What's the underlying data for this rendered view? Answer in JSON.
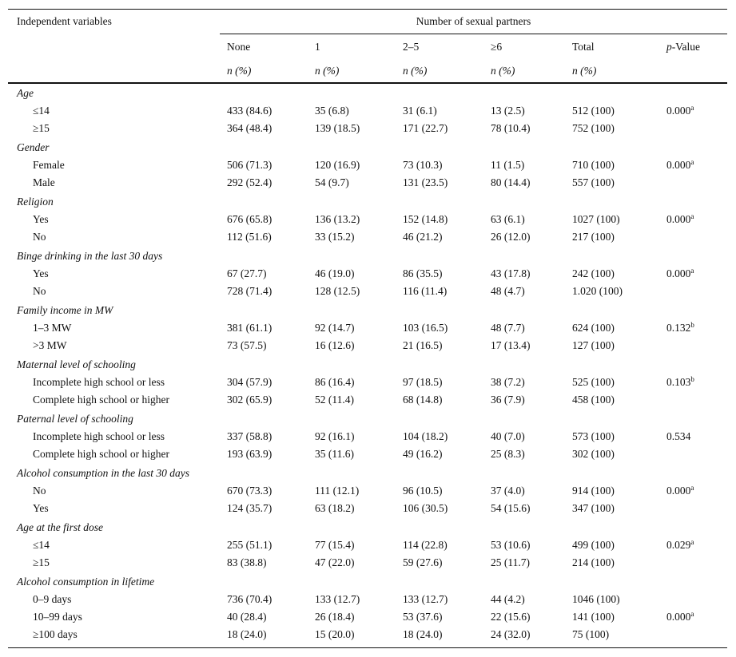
{
  "header": {
    "label_column": "Independent variables",
    "group": "Number of sexual partners",
    "columns": [
      "None",
      "1",
      "2–5",
      "≥6",
      "Total"
    ],
    "p_column": {
      "italic": "p",
      "rest": "-Value"
    },
    "units": [
      "n (%)",
      "n (%)",
      "n (%)",
      "n (%)",
      "n (%)"
    ]
  },
  "groups": [
    {
      "label": "Age",
      "rows": [
        {
          "label": "≤14",
          "cells": [
            "433 (84.6)",
            "35 (6.8)",
            "31 (6.1)",
            "13 (2.5)",
            "512 (100)"
          ],
          "p": "0.000",
          "note": "a"
        },
        {
          "label": "≥15",
          "cells": [
            "364 (48.4)",
            "139 (18.5)",
            "171 (22.7)",
            "78 (10.4)",
            "752 (100)"
          ]
        }
      ]
    },
    {
      "label": "Gender",
      "rows": [
        {
          "label": "Female",
          "cells": [
            "506 (71.3)",
            "120 (16.9)",
            "73 (10.3)",
            "11 (1.5)",
            "710 (100)"
          ],
          "p": "0.000",
          "note": "a"
        },
        {
          "label": "Male",
          "cells": [
            "292 (52.4)",
            "54 (9.7)",
            "131 (23.5)",
            "80 (14.4)",
            "557 (100)"
          ]
        }
      ]
    },
    {
      "label": "Religion",
      "rows": [
        {
          "label": "Yes",
          "cells": [
            "676 (65.8)",
            "136 (13.2)",
            "152 (14.8)",
            "63 (6.1)",
            "1027 (100)"
          ],
          "p": "0.000",
          "note": "a"
        },
        {
          "label": "No",
          "cells": [
            "112 (51.6)",
            "33 (15.2)",
            "46 (21.2)",
            "26 (12.0)",
            "217 (100)"
          ]
        }
      ]
    },
    {
      "label": "Binge drinking in the last 30 days",
      "rows": [
        {
          "label": "Yes",
          "cells": [
            "67 (27.7)",
            "46 (19.0)",
            "86 (35.5)",
            "43 (17.8)",
            "242 (100)"
          ],
          "p": "0.000",
          "note": "a"
        },
        {
          "label": "No",
          "cells": [
            "728 (71.4)",
            "128 (12.5)",
            "116 (11.4)",
            "48 (4.7)",
            "1.020 (100)"
          ]
        }
      ]
    },
    {
      "label": "Family income in MW",
      "rows": [
        {
          "label": "1–3 MW",
          "cells": [
            "381 (61.1)",
            "92 (14.7)",
            "103 (16.5)",
            "48 (7.7)",
            "624 (100)"
          ],
          "p": "0.132",
          "note": "b"
        },
        {
          "label": ">3 MW",
          "cells": [
            "73 (57.5)",
            "16 (12.6)",
            "21 (16.5)",
            "17 (13.4)",
            "127 (100)"
          ]
        }
      ]
    },
    {
      "label": "Maternal level of schooling",
      "rows": [
        {
          "label": "Incomplete high school or less",
          "cells": [
            "304 (57.9)",
            "86 (16.4)",
            "97 (18.5)",
            "38 (7.2)",
            "525 (100)"
          ],
          "p": "0.103",
          "note": "b"
        },
        {
          "label": "Complete high school or higher",
          "cells": [
            "302 (65.9)",
            "52 (11.4)",
            "68 (14.8)",
            "36 (7.9)",
            "458 (100)"
          ]
        }
      ]
    },
    {
      "label": "Paternal level of schooling",
      "rows": [
        {
          "label": "Incomplete high school or less",
          "cells": [
            "337 (58.8)",
            "92 (16.1)",
            "104 (18.2)",
            "40 (7.0)",
            "573 (100)"
          ],
          "p": "0.534"
        },
        {
          "label": "Complete high school or higher",
          "cells": [
            "193 (63.9)",
            "35 (11.6)",
            "49 (16.2)",
            "25 (8.3)",
            "302 (100)"
          ]
        }
      ]
    },
    {
      "label": "Alcohol consumption in the last 30 days",
      "rows": [
        {
          "label": "No",
          "cells": [
            "670 (73.3)",
            "111 (12.1)",
            "96 (10.5)",
            "37 (4.0)",
            "914 (100)"
          ],
          "p": "0.000",
          "note": "a"
        },
        {
          "label": "Yes",
          "cells": [
            "124 (35.7)",
            "63 (18.2)",
            "106 (30.5)",
            "54 (15.6)",
            "347 (100)"
          ]
        }
      ]
    },
    {
      "label": "Age at the first dose",
      "rows": [
        {
          "label": "≤14",
          "cells": [
            "255 (51.1)",
            "77 (15.4)",
            "114 (22.8)",
            "53 (10.6)",
            "499 (100)"
          ],
          "p": "0.029",
          "note": "a"
        },
        {
          "label": "≥15",
          "cells": [
            "83 (38.8)",
            "47 (22.0)",
            "59 (27.6)",
            "25 (11.7)",
            "214 (100)"
          ]
        }
      ]
    },
    {
      "label": "Alcohol consumption in lifetime",
      "rows": [
        {
          "label": "0–9 days",
          "cells": [
            "736 (70.4)",
            "133 (12.7)",
            "133 (12.7)",
            "44 (4.2)",
            "1046 (100)"
          ]
        },
        {
          "label": "10–99 days",
          "cells": [
            "40 (28.4)",
            "26 (18.4)",
            "53 (37.6)",
            "22 (15.6)",
            "141 (100)"
          ],
          "p": "0.000",
          "note": "a"
        },
        {
          "label": "≥100 days",
          "cells": [
            "18 (24.0)",
            "15 (20.0)",
            "18 (24.0)",
            "24 (32.0)",
            "75 (100)"
          ]
        }
      ]
    }
  ]
}
